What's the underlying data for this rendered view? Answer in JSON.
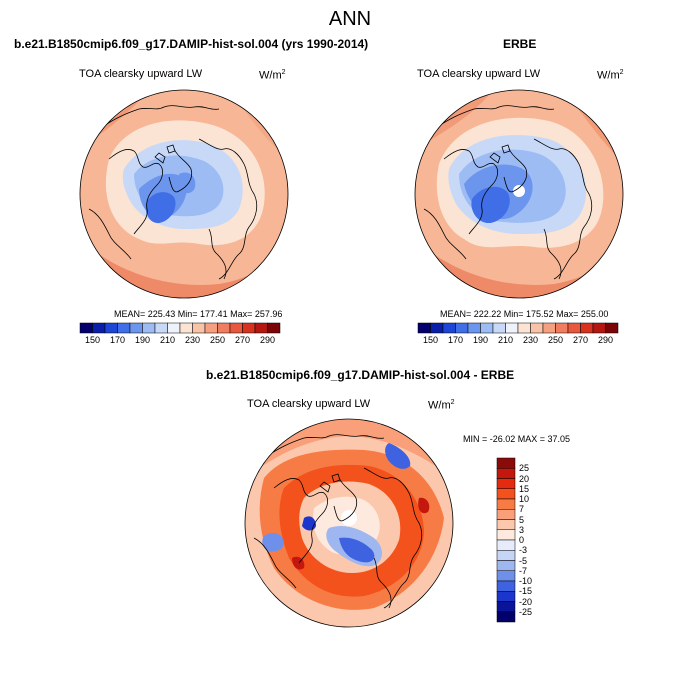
{
  "figure": {
    "title": "ANN"
  },
  "panels": [
    {
      "id": "model",
      "title": "b.e21.B1850cmip6.f09_g17.DAMIP-hist-sol.004 (yrs 1990-2014)",
      "variable": "TOA clearsky upward LW",
      "units_base": "W/m",
      "units_exp": "2",
      "stats": "MEAN= 225.43  Min= 177.41  Max= 257.96",
      "colorbar_labels": [
        "150",
        "170",
        "190",
        "210",
        "230",
        "250",
        "270",
        "290"
      ],
      "colorbar_colors": [
        "#03006e",
        "#0a1fa8",
        "#1e46d6",
        "#3f6ee6",
        "#6c95ee",
        "#9dbcf4",
        "#c8d9f8",
        "#eef2fa",
        "#fbe4d3",
        "#f8c3a6",
        "#f5a080",
        "#f07d5f",
        "#e8583f",
        "#d7321f",
        "#b41711",
        "#7a0406"
      ]
    },
    {
      "id": "obs",
      "title": "ERBE",
      "variable": "TOA clearsky upward LW",
      "units_base": "W/m",
      "units_exp": "2",
      "stats": "MEAN= 222.22  Min= 175.52  Max= 255.00",
      "colorbar_labels": [
        "150",
        "170",
        "190",
        "210",
        "230",
        "250",
        "270",
        "290"
      ],
      "colorbar_colors": [
        "#03006e",
        "#0a1fa8",
        "#1e46d6",
        "#3f6ee6",
        "#6c95ee",
        "#9dbcf4",
        "#c8d9f8",
        "#eef2fa",
        "#fbe4d3",
        "#f8c3a6",
        "#f5a080",
        "#f07d5f",
        "#e8583f",
        "#d7321f",
        "#b41711",
        "#7a0406"
      ]
    },
    {
      "id": "diff",
      "title": "b.e21.B1850cmip6.f09_g17.DAMIP-hist-sol.004 - ERBE",
      "variable": "TOA clearsky upward LW",
      "units_base": "W/m",
      "units_exp": "2",
      "stats": "MIN = -26.02 MAX =  37.05",
      "colorbar_labels": [
        "25",
        "20",
        "15",
        "10",
        "7",
        "5",
        "3",
        "0",
        "-3",
        "-5",
        "-7",
        "-10",
        "-15",
        "-20",
        "-25"
      ],
      "colorbar_colors": [
        "#8b0a0a",
        "#c4180e",
        "#e62a0f",
        "#f3521c",
        "#f77b45",
        "#f9a07a",
        "#fbc8ad",
        "#fde9de",
        "#e6ecf9",
        "#c6d5f5",
        "#9fb7f0",
        "#6f90ea",
        "#3f62e0",
        "#1c35cc",
        "#0a1499",
        "#02006a"
      ]
    }
  ],
  "colors": {
    "land_outline": "#000000",
    "missing": "#ffffff"
  }
}
